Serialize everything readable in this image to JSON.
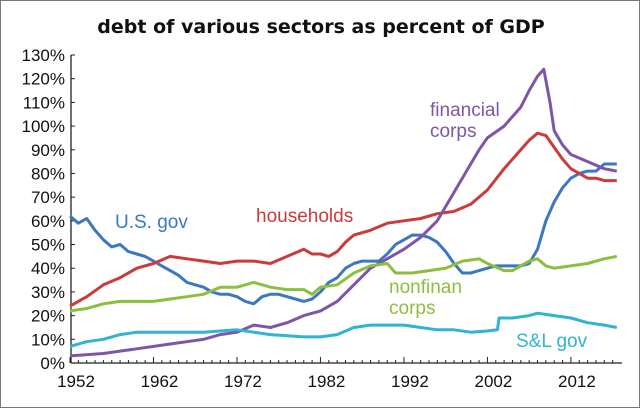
{
  "chart_data": {
    "type": "line",
    "title": "debt of various sectors as percent of GDP",
    "xlabel": "",
    "ylabel": "",
    "xlim": [
      1952,
      2018
    ],
    "ylim": [
      0,
      130
    ],
    "y_ticks": [
      "0%",
      "10%",
      "20%",
      "30%",
      "40%",
      "50%",
      "60%",
      "70%",
      "80%",
      "90%",
      "100%",
      "110%",
      "120%",
      "130%"
    ],
    "x_ticks": [
      "1952",
      "1962",
      "1972",
      "1982",
      "1992",
      "2002",
      "2012"
    ],
    "grid": false,
    "legend": "inline labels",
    "series": [
      {
        "name": "U.S. gov",
        "color": "#3b78c2",
        "x": [
          1952,
          1953,
          1954,
          1955,
          1956,
          1957,
          1958,
          1959,
          1960,
          1961,
          1962,
          1963,
          1964,
          1965,
          1966,
          1967,
          1968,
          1969,
          1970,
          1971,
          1972,
          1973,
          1974,
          1975,
          1976,
          1977,
          1978,
          1979,
          1980,
          1981,
          1982,
          1983,
          1984,
          1985,
          1986,
          1987,
          1988,
          1989,
          1990,
          1991,
          1992,
          1993,
          1994,
          1995,
          1996,
          1997,
          1998,
          1999,
          2000,
          2001,
          2002,
          2003,
          2004,
          2005,
          2006,
          2007,
          2008,
          2009,
          2010,
          2011,
          2012,
          2013,
          2014,
          2015,
          2016,
          2017.5
        ],
        "y": [
          62,
          59,
          61,
          56,
          52,
          49,
          50,
          47,
          46,
          45,
          43,
          41,
          39,
          37,
          34,
          33,
          32,
          30,
          29,
          29,
          28,
          26,
          25,
          28,
          29,
          29,
          28,
          27,
          26,
          27,
          30,
          34,
          36,
          40,
          42,
          43,
          43,
          43,
          46,
          50,
          52,
          54,
          54,
          53,
          51,
          47,
          42,
          38,
          38,
          39,
          40,
          41,
          41,
          41,
          41,
          42,
          48,
          60,
          68,
          74,
          78,
          80,
          81,
          81,
          84,
          84
        ]
      },
      {
        "name": "households",
        "color": "#cc3b3b",
        "x": [
          1952,
          1954,
          1956,
          1958,
          1960,
          1962,
          1964,
          1966,
          1968,
          1970,
          1972,
          1974,
          1976,
          1978,
          1980,
          1981,
          1982,
          1983,
          1984,
          1985,
          1986,
          1988,
          1990,
          1992,
          1994,
          1996,
          1998,
          2000,
          2002,
          2004,
          2006,
          2007,
          2008,
          2009,
          2010,
          2011,
          2012,
          2013,
          2014,
          2015,
          2016,
          2017.5
        ],
        "y": [
          24,
          28,
          33,
          36,
          40,
          42,
          45,
          44,
          43,
          42,
          43,
          43,
          42,
          45,
          48,
          46,
          46,
          45,
          47,
          51,
          54,
          56,
          59,
          60,
          61,
          63,
          64,
          67,
          73,
          82,
          90,
          94,
          97,
          96,
          91,
          86,
          82,
          80,
          78,
          78,
          77,
          77
        ]
      },
      {
        "name": "financial corps",
        "color": "#7e56a8",
        "x": [
          1952,
          1956,
          1960,
          1964,
          1968,
          1970,
          1972,
          1974,
          1976,
          1978,
          1980,
          1982,
          1984,
          1986,
          1988,
          1990,
          1992,
          1994,
          1996,
          1998,
          2000,
          2001,
          2002,
          2004,
          2006,
          2007,
          2008,
          2008.75,
          2009.5,
          2010,
          2011,
          2012,
          2014,
          2016,
          2017.5
        ],
        "y": [
          3,
          4,
          6,
          8,
          10,
          12,
          13,
          16,
          15,
          17,
          20,
          22,
          26,
          33,
          40,
          44,
          48,
          53,
          60,
          72,
          84,
          90,
          95,
          100,
          108,
          115,
          121,
          124,
          110,
          98,
          92,
          88,
          85,
          82,
          81
        ]
      },
      {
        "name": "nonfinan corps",
        "color": "#8dbf3f",
        "x": [
          1952,
          1954,
          1956,
          1958,
          1960,
          1962,
          1964,
          1966,
          1968,
          1970,
          1972,
          1974,
          1976,
          1978,
          1980,
          1981,
          1982,
          1984,
          1986,
          1988,
          1990,
          1991,
          1993,
          1995,
          1997,
          1999,
          2001,
          2002,
          2004,
          2005,
          2006,
          2007,
          2008,
          2009,
          2010,
          2012,
          2014,
          2016,
          2017.5
        ],
        "y": [
          22,
          23,
          25,
          26,
          26,
          26,
          27,
          28,
          29,
          32,
          32,
          34,
          32,
          31,
          31,
          29,
          32,
          33,
          38,
          41,
          42,
          38,
          38,
          39,
          40,
          43,
          44,
          42,
          39,
          39,
          41,
          43,
          44,
          41,
          40,
          41,
          42,
          44,
          45
        ]
      },
      {
        "name": "S&L gov",
        "color": "#2fb4d1",
        "x": [
          1952,
          1954,
          1956,
          1958,
          1960,
          1964,
          1968,
          1972,
          1974,
          1976,
          1980,
          1982,
          1984,
          1986,
          1988,
          1990,
          1992,
          1994,
          1996,
          1998,
          2000,
          2002,
          2003.2,
          2003.4,
          2005,
          2007,
          2008,
          2010,
          2012,
          2014,
          2016,
          2017.5
        ],
        "y": [
          7,
          9,
          10,
          12,
          13,
          13,
          13,
          14,
          13,
          12,
          11,
          11,
          12,
          15,
          16,
          16,
          16,
          15,
          14,
          14,
          13,
          13.5,
          14,
          19,
          19,
          20,
          21,
          20,
          19,
          17,
          16,
          15
        ]
      }
    ]
  }
}
